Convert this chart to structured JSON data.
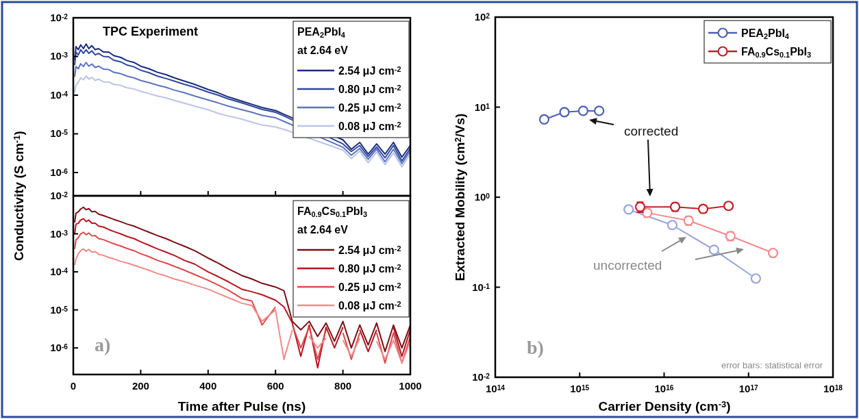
{
  "chart_data": [
    {
      "type": "line",
      "title": "TPC Experiment",
      "ylabel": "Conductivity (S cm$^{-1}$)",
      "legend_title": "PEA$_{2}$PbI$_{4}$\nat 2.64 eV",
      "legend": "top right",
      "log": "y",
      "tick_labels": "y",
      "xlim": [
        0,
        1000
      ],
      "xticks": [
        0,
        200,
        400,
        600,
        800,
        1000
      ],
      "ylim": [
        2.5e-07,
        0.01
      ],
      "yticks": [
        {
          "value": 1e-06,
          "label": "10$^{-6}$"
        },
        {
          "value": 1e-05,
          "label": "10$^{-5}$"
        },
        {
          "value": 0.0001,
          "label": "10$^{-4}$"
        },
        {
          "value": 0.001,
          "label": "10$^{-3}$"
        },
        {
          "value": 0.01,
          "label": "10$^{-2}$"
        }
      ],
      "x": [
        4,
        8,
        15,
        22,
        30,
        38,
        46,
        55,
        65,
        75,
        90,
        105,
        120,
        140,
        160,
        180,
        200,
        225,
        250,
        275,
        300,
        330,
        360,
        400,
        430,
        460,
        500,
        530,
        560,
        600,
        625,
        800,
        825,
        850,
        875,
        900,
        925,
        950,
        975,
        1000
      ],
      "series": [
        {
          "name": "2.54 μJ cm$^{-2}$",
          "color": "#1a2a7a",
          "values": [
            0.0008,
            0.0018,
            0.0015,
            0.002,
            0.0016,
            0.0021,
            0.0016,
            0.0019,
            0.0015,
            0.0016,
            0.0013,
            0.0013,
            0.00105,
            0.00095,
            0.00078,
            0.0007,
            0.00056,
            0.00048,
            0.00039,
            0.00034,
            0.00028,
            0.00023,
            0.00019,
            0.00014,
            0.000115,
            9e-05,
            7e-05,
            5.8e-05,
            4.8e-05,
            4e-05,
            3.2e-05,
            7e-06,
            4e-06,
            6e-06,
            3e-06,
            5.5e-06,
            3e-06,
            6e-06,
            2.5e-06,
            5e-06
          ]
        },
        {
          "name": "0.80 μJ cm$^{-2}$",
          "color": "#2c46a0",
          "values": [
            0.0006,
            0.0013,
            0.0011,
            0.0015,
            0.0012,
            0.0015,
            0.0012,
            0.0014,
            0.0011,
            0.0012,
            0.001,
            0.00098,
            0.0008,
            0.00073,
            0.0006,
            0.00054,
            0.00044,
            0.00038,
            0.00031,
            0.00027,
            0.00023,
            0.00019,
            0.00016,
            0.00012,
            0.0001,
            8e-05,
            6.3e-05,
            5.2e-05,
            4.3e-05,
            3.6e-05,
            2.9e-05,
            5.5e-06,
            3.5e-06,
            5e-06,
            2.6e-06,
            4.6e-06,
            2.4e-06,
            5e-06,
            2e-06,
            4.2e-06
          ]
        },
        {
          "name": "0.25 μJ cm$^{-2}$",
          "color": "#5b73c0",
          "values": [
            0.0003,
            0.00055,
            0.00048,
            0.00065,
            0.00055,
            0.0007,
            0.00056,
            0.00064,
            0.00052,
            0.00056,
            0.00047,
            0.00046,
            0.00039,
            0.00036,
            0.00031,
            0.00028,
            0.00024,
            0.00021,
            0.00018,
            0.00016,
            0.000135,
            0.000115,
            9.5e-05,
            7.5e-05,
            6.3e-05,
            5.2e-05,
            4.2e-05,
            3.6e-05,
            3e-05,
            2.6e-05,
            2.1e-05,
            4.5e-06,
            2.8e-06,
            4.2e-06,
            2.2e-06,
            4e-06,
            1.9e-06,
            4e-06,
            1.7e-06,
            3.6e-06
          ]
        },
        {
          "name": "0.08 μJ cm$^{-2}$",
          "color": "#b9c4e6",
          "values": [
            0.00012,
            0.00018,
            0.00022,
            0.00028,
            0.00025,
            0.00031,
            0.00026,
            0.00029,
            0.00024,
            0.00026,
            0.00022,
            0.00022,
            0.00019,
            0.00018,
            0.000155,
            0.000145,
            0.000125,
            0.00011,
            9.5e-05,
            8.5e-05,
            7.3e-05,
            6.2e-05,
            5.2e-05,
            4.2e-05,
            3.4e-05,
            2.9e-05,
            2.4e-05,
            2e-05,
            1.7e-05,
            1.5e-05,
            1.3e-05,
            3.8e-06,
            2.3e-06,
            3.6e-06,
            1.8e-06,
            3.4e-06,
            1.6e-06,
            3.2e-06,
            1.4e-06,
            3e-06
          ]
        }
      ]
    },
    {
      "type": "line",
      "xlabel": "Time after Pulse (ns)",
      "legend_title": "FA$_{0.9}$Cs$_{0.1}$PbI$_{3}$\nat 2.64 eV",
      "legend": "top right",
      "log": "y",
      "annotations": [
        "a)"
      ],
      "xlim": [
        0,
        1000
      ],
      "xticks": [
        0,
        200,
        400,
        600,
        800,
        1000
      ],
      "ylim": [
        2e-07,
        0.01
      ],
      "yticks": [
        {
          "value": 1e-06,
          "label": "10$^{-6}$"
        },
        {
          "value": 1e-05,
          "label": "10$^{-5}$"
        },
        {
          "value": 0.0001,
          "label": "10$^{-4}$"
        },
        {
          "value": 0.001,
          "label": "10$^{-3}$"
        },
        {
          "value": 0.01,
          "label": "10$^{-2}$"
        }
      ],
      "x": [
        4,
        8,
        15,
        22,
        30,
        38,
        46,
        55,
        65,
        75,
        90,
        105,
        120,
        140,
        160,
        180,
        200,
        225,
        250,
        275,
        300,
        330,
        360,
        400,
        430,
        460,
        500,
        530,
        560,
        600,
        625,
        650,
        675,
        700,
        725,
        750,
        775,
        800,
        825,
        850,
        875,
        900,
        925,
        950,
        975,
        1000
      ],
      "series": [
        {
          "name": "2.54 μJ cm$^{-2}$",
          "color": "#7a0f14",
          "values": [
            0.002,
            0.0035,
            0.0038,
            0.0045,
            0.005,
            0.0043,
            0.0046,
            0.0038,
            0.0039,
            0.0033,
            0.003,
            0.0027,
            0.0024,
            0.0021,
            0.0018,
            0.0016,
            0.00135,
            0.0011,
            0.0009,
            0.00075,
            0.0006,
            0.00047,
            0.00036,
            0.00023,
            0.00017,
            0.00012,
            8e-05,
            6.5e-05,
            5e-05,
            4e-05,
            3.2e-05,
            5e-06,
            3e-06,
            5e-06,
            2e-06,
            4.5e-06,
            1.5e-06,
            5e-06,
            1e-06,
            4e-06,
            1.2e-06,
            4.5e-06,
            8e-07,
            4e-06,
            1e-06,
            4e-06
          ]
        },
        {
          "name": "0.80 μJ cm$^{-2}$",
          "color": "#b5161f",
          "values": [
            0.001,
            0.0018,
            0.0019,
            0.0023,
            0.0025,
            0.0021,
            0.0023,
            0.0019,
            0.0019,
            0.0016,
            0.0015,
            0.0013,
            0.00115,
            0.001,
            0.00085,
            0.00075,
            0.00062,
            0.0005,
            0.0004,
            0.00033,
            0.00027,
            0.0002,
            0.00016,
            0.0001,
            7.5e-05,
            5.5e-05,
            3.5e-05,
            3e-05,
            2.5e-05,
            1.8e-05,
            1.2e-05,
            4.5e-06,
            6e-07,
            4e-06,
            3e-07,
            3.5e-06,
            1e-06,
            3.5e-06,
            null,
            3e-06,
            8e-07,
            3e-06,
            null,
            3.5e-06,
            6e-07,
            3e-06
          ]
        },
        {
          "name": "0.25 μJ cm$^{-2}$",
          "color": "#e0474a",
          "values": [
            0.0004,
            0.0007,
            0.0008,
            0.001,
            0.0011,
            0.00095,
            0.00105,
            0.00088,
            0.0009,
            0.00075,
            0.0007,
            0.00062,
            0.00055,
            0.00048,
            0.00041,
            0.00036,
            0.0003,
            0.00025,
            0.0002,
            0.00017,
            0.00014,
            0.00011,
            8.5e-05,
            6e-05,
            4.5e-05,
            3.3e-05,
            2e-05,
            1.7e-05,
            4e-06,
            1.2e-05,
            null,
            4e-06,
            1e-06,
            3.5e-06,
            5e-07,
            3e-06,
            null,
            2.5e-06,
            5e-07,
            2.5e-06,
            null,
            2.5e-06,
            4e-07,
            2.5e-06,
            4e-07,
            2e-06
          ]
        },
        {
          "name": "0.08 μJ cm$^{-2}$",
          "color": "#f08a8a",
          "values": [
            0.00015,
            0.00022,
            0.0003,
            0.00036,
            0.0004,
            0.00035,
            0.00039,
            0.00033,
            0.00034,
            0.00029,
            0.00027,
            0.00024,
            0.00022,
            0.00019,
            0.00017,
            0.00015,
            0.00013,
            0.00011,
            9e-05,
            7.8e-05,
            6.5e-05,
            5.5e-05,
            4.5e-05,
            3.5e-05,
            2.7e-05,
            2.1e-05,
            1.5e-05,
            1.3e-05,
            5e-06,
            1e-05,
            5e-07,
            3e-06,
            null,
            2e-06,
            1e-06,
            1.8e-06,
            null,
            1.6e-06,
            6e-07,
            1.8e-06,
            null,
            1.5e-06,
            5e-07,
            1.6e-06,
            4e-07,
            1.5e-06
          ]
        }
      ]
    },
    {
      "type": "line",
      "xlabel": "Carrier Density (cm$^{-3}$)",
      "ylabel": "Extracted Mobility (cm$^{2}$/Vs)",
      "legend": "top right",
      "log": "xy",
      "marker": "circle",
      "annotations": [
        "corrected",
        "uncorrected",
        "b)",
        "error bars: statistical error"
      ],
      "xlim": [
        100000000000000.0,
        1e+18
      ],
      "xticks": [
        {
          "value": 100000000000000.0,
          "label": "10$^{14}$"
        },
        {
          "value": 1000000000000000.0,
          "label": "10$^{15}$"
        },
        {
          "value": 1e+16,
          "label": "10$^{16}$"
        },
        {
          "value": 1e+17,
          "label": "10$^{17}$"
        },
        {
          "value": 1e+18,
          "label": "10$^{18}$"
        }
      ],
      "ylim": [
        0.01,
        100
      ],
      "yticks": [
        {
          "value": 0.01,
          "label": "10$^{-2}$"
        },
        {
          "value": 0.1,
          "label": "10$^{-1}$"
        },
        {
          "value": 1,
          "label": "10$^{0}$"
        },
        {
          "value": 10,
          "label": "10$^{1}$"
        },
        {
          "value": 100,
          "label": "10$^{2}$"
        }
      ],
      "series": [
        {
          "color": "#96a5dc",
          "x": [
            3800000000000000.0,
            1.25e+16,
            3.9e+16,
            1.22e+17
          ],
          "values": [
            0.73,
            0.49,
            0.26,
            0.125
          ]
        },
        {
          "color": "#f28b8b",
          "x": [
            6300000000000000.0,
            1.95e+16,
            6.1e+16,
            1.95e+17
          ],
          "values": [
            0.67,
            0.55,
            0.37,
            0.24
          ],
          "errors": [
            0.07,
            0.06,
            0.04,
            0.02
          ]
        },
        {
          "name": "PEA$_{2}$PbI$_{4}$",
          "color": "#4a5fb5",
          "x": [
            380000000000000.0,
            660000000000000.0,
            1100000000000000.0,
            1700000000000000.0
          ],
          "values": [
            7.3,
            8.8,
            9.1,
            9.1
          ]
        },
        {
          "name": "FA$_{0.9}$Cs$_{0.1}$PbI$_{3}$",
          "color": "#c41e26",
          "x": [
            5200000000000000.0,
            1.35e+16,
            2.9e+16,
            5.8e+16
          ],
          "values": [
            0.78,
            0.78,
            0.74,
            0.8
          ],
          "errors": [
            0.1,
            0.08,
            0.07,
            0.07
          ]
        }
      ]
    }
  ]
}
